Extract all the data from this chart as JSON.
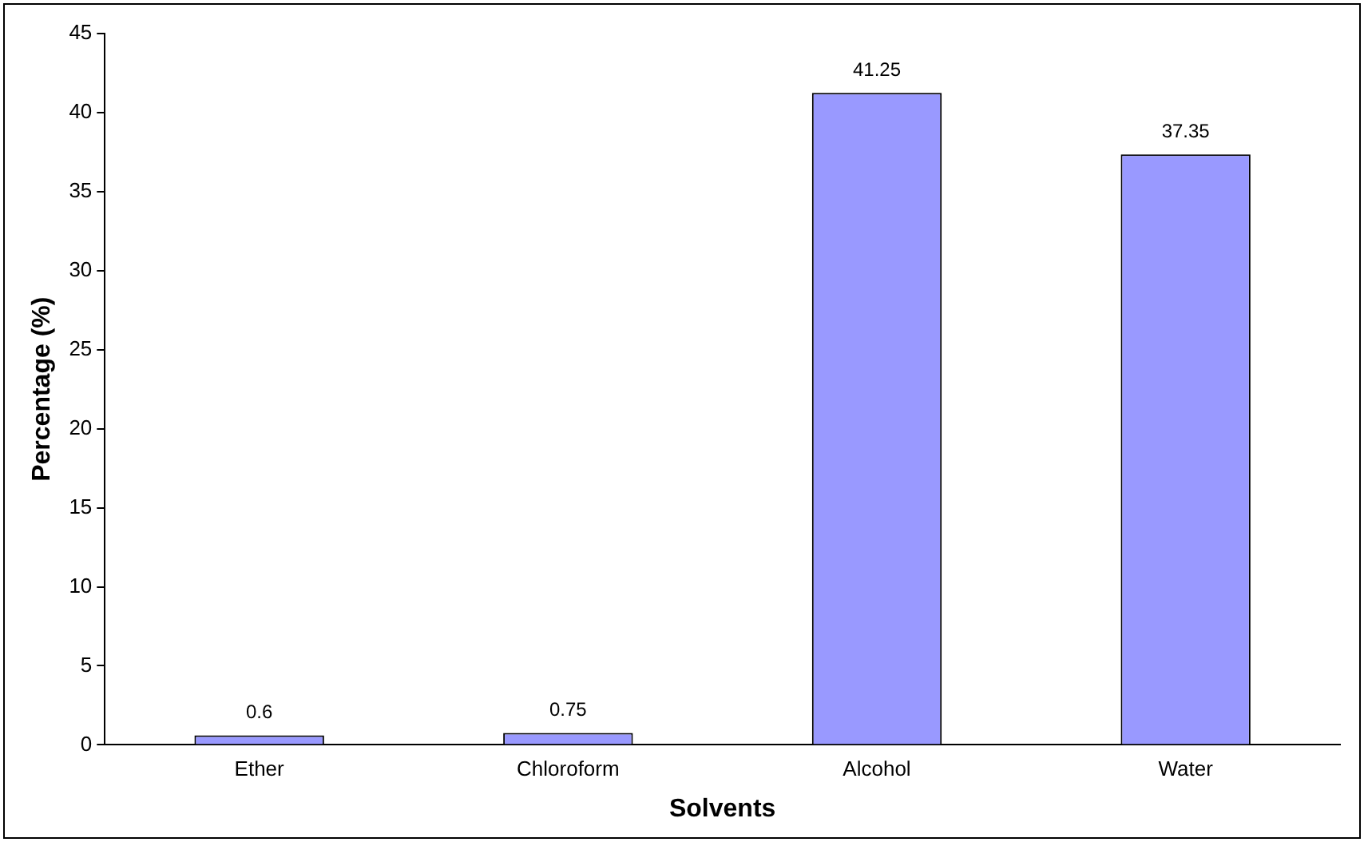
{
  "chart_data": {
    "type": "bar",
    "xlabel": "Solvents",
    "ylabel": "Percentage (%)",
    "categories": [
      "Ether",
      "Chloroform",
      "Alcohol",
      "Water"
    ],
    "values": [
      0.6,
      0.75,
      41.25,
      37.35
    ],
    "color": "#9999ff",
    "ylim": [
      0,
      45
    ],
    "yticks": [
      0,
      5,
      10,
      15,
      20,
      25,
      30,
      35,
      40,
      45
    ],
    "grid": false,
    "legend": false,
    "data_labels": true
  }
}
